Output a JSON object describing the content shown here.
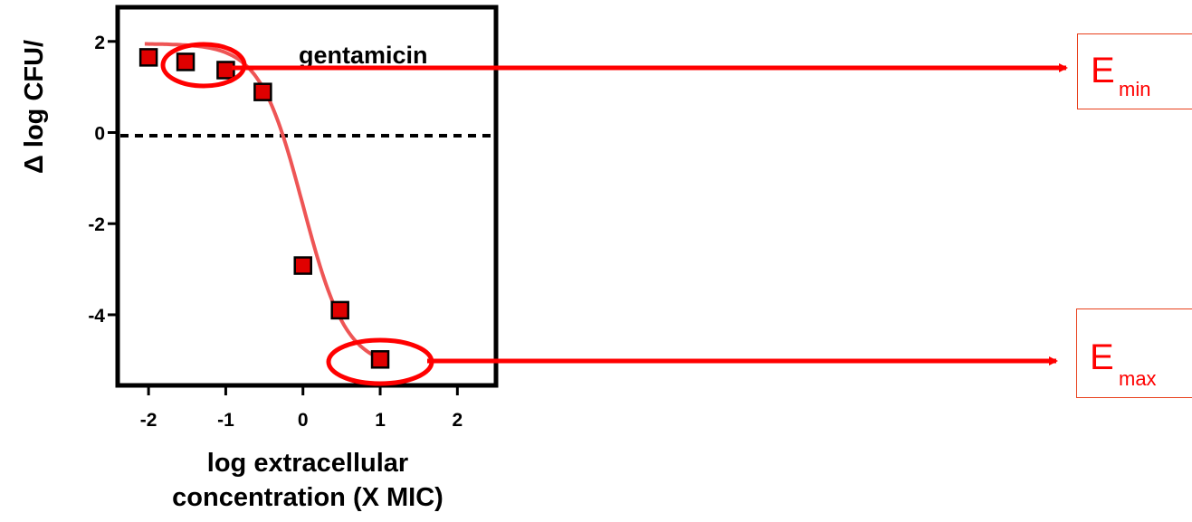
{
  "chart_data": {
    "type": "scatter",
    "title": "",
    "xlabel_line1": "log extracellular",
    "xlabel_line2": "concentration (X MIC)",
    "ylabel": "Δ log CFU/",
    "annotation": "gentamicin",
    "xlim": [
      -2.4,
      2.5
    ],
    "ylim": [
      -5.55,
      2.75
    ],
    "xticks": [
      -2,
      -1,
      0,
      1,
      2
    ],
    "xtick_labels": [
      "-2",
      "-1",
      "0",
      "1",
      "2"
    ],
    "yticks": [
      2,
      0,
      -2,
      -4
    ],
    "ytick_labels": [
      "2",
      "0",
      "-2",
      "-4"
    ],
    "baseline_y": -0.07,
    "points": [
      {
        "x": -2.0,
        "y": 1.65
      },
      {
        "x": -1.52,
        "y": 1.55
      },
      {
        "x": -1.0,
        "y": 1.37
      },
      {
        "x": -0.52,
        "y": 0.89
      },
      {
        "x": 0.0,
        "y": -2.92
      },
      {
        "x": 0.48,
        "y": -3.9
      },
      {
        "x": 1.0,
        "y": -4.98
      }
    ],
    "fit_curve": {
      "top": 1.95,
      "bottom": -5.15,
      "ec50": 0.0,
      "hill": -1.55,
      "x_range": [
        -2.05,
        1.05
      ]
    },
    "colors": {
      "marker": "#e00000",
      "curve": "#ee5555",
      "arrow": "#ff0000",
      "ellipse": "#ff0000",
      "box_border": "#e8401c"
    }
  },
  "emin": {
    "main": "E",
    "sub": "min"
  },
  "emax": {
    "main": "E",
    "sub": "max"
  }
}
